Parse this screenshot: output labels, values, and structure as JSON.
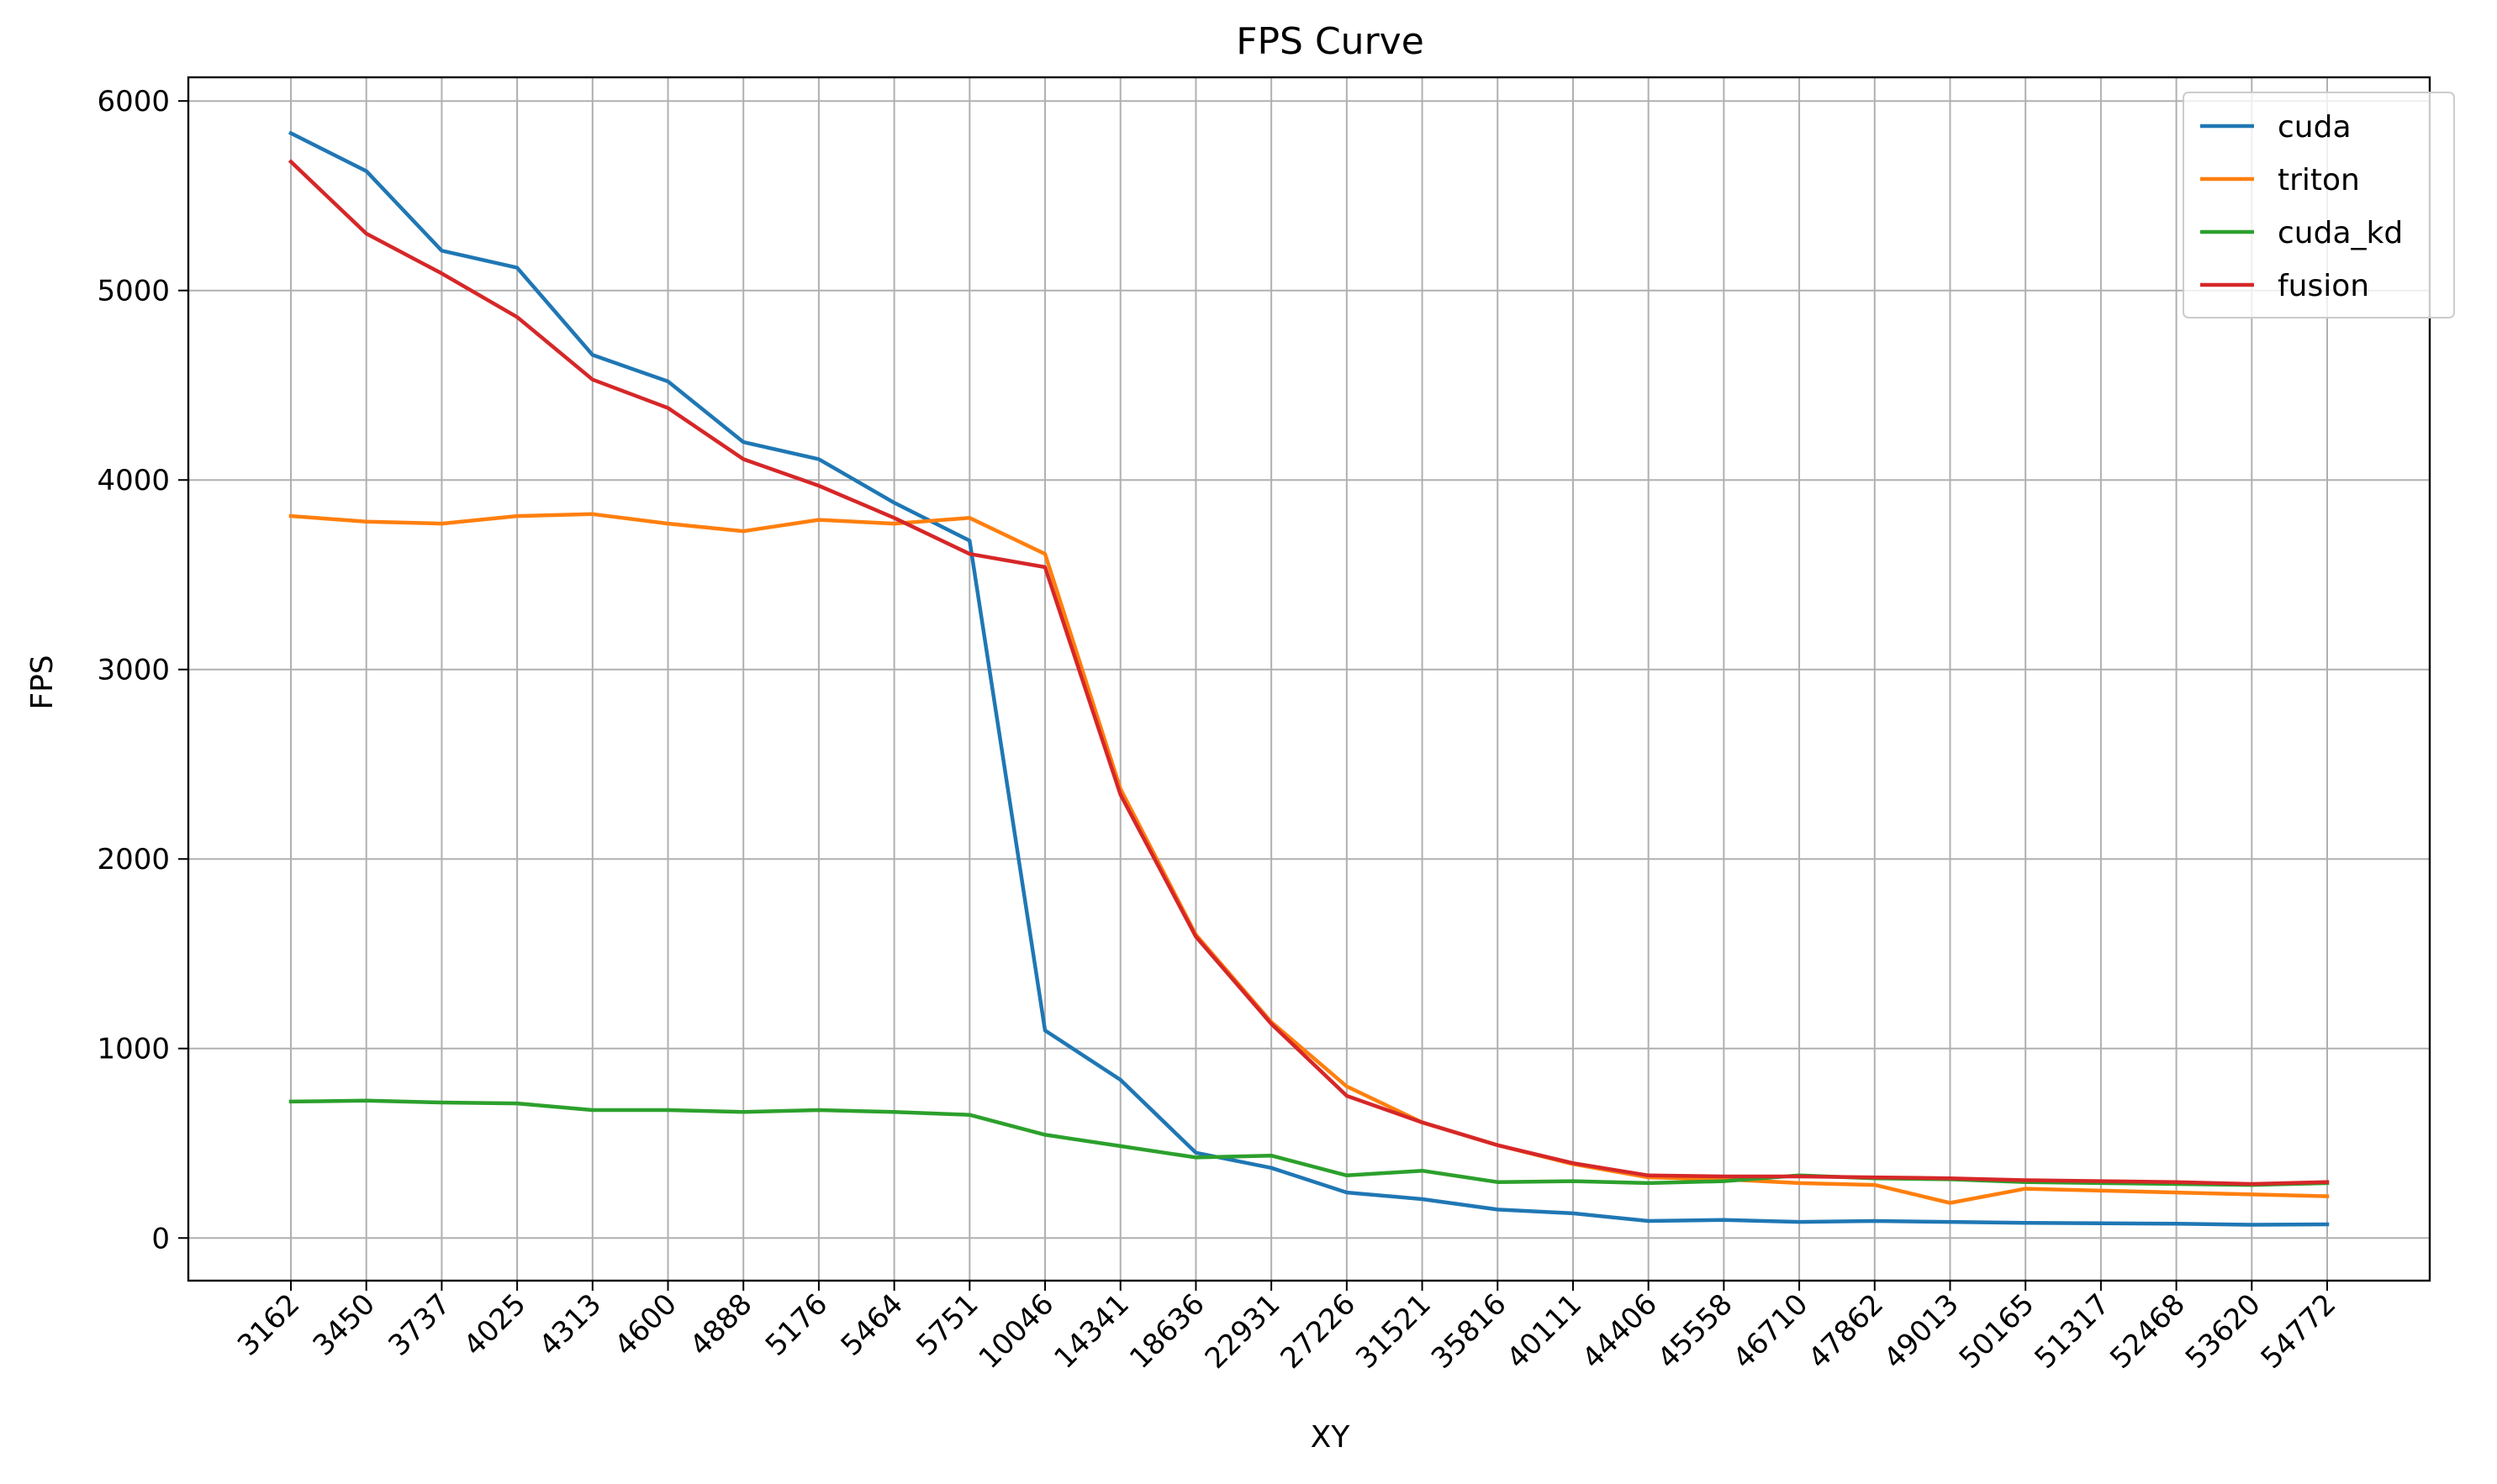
{
  "chart_data": {
    "type": "line",
    "title": "FPS Curve",
    "xlabel": "XY",
    "ylabel": "FPS",
    "categories": [
      "3162",
      "3450",
      "3737",
      "4025",
      "4313",
      "4600",
      "4888",
      "5176",
      "5464",
      "5751",
      "10046",
      "14341",
      "18636",
      "22931",
      "27226",
      "31521",
      "35816",
      "40111",
      "44406",
      "45558",
      "46710",
      "47862",
      "49013",
      "50165",
      "51317",
      "52468",
      "53620",
      "54772"
    ],
    "yticks": [
      0,
      1000,
      2000,
      3000,
      4000,
      5000,
      6000
    ],
    "ylim": [
      -225,
      6125
    ],
    "grid": true,
    "legend_position": "top-right",
    "series": [
      {
        "name": "cuda",
        "color": "#1f77b4",
        "values": [
          5830,
          5630,
          5210,
          5120,
          4660,
          4520,
          4200,
          4110,
          3880,
          3680,
          1095,
          835,
          450,
          370,
          240,
          205,
          150,
          130,
          90,
          95,
          85,
          90,
          85,
          80,
          78,
          75,
          70,
          72
        ]
      },
      {
        "name": "triton",
        "color": "#ff7f0e",
        "values": [
          3810,
          3780,
          3770,
          3810,
          3820,
          3770,
          3730,
          3790,
          3770,
          3800,
          3610,
          2370,
          1600,
          1140,
          800,
          610,
          490,
          390,
          320,
          310,
          290,
          280,
          185,
          260,
          250,
          240,
          230,
          220
        ]
      },
      {
        "name": "cuda_kd",
        "color": "#2ca02c",
        "values": [
          720,
          725,
          715,
          710,
          675,
          675,
          665,
          675,
          665,
          650,
          545,
          485,
          425,
          435,
          330,
          355,
          295,
          300,
          290,
          300,
          330,
          315,
          310,
          295,
          290,
          285,
          280,
          290
        ]
      },
      {
        "name": "fusion",
        "color": "#d62728",
        "values": [
          5680,
          5300,
          5090,
          4860,
          4530,
          4380,
          4110,
          3970,
          3800,
          3610,
          3540,
          2340,
          1590,
          1130,
          750,
          610,
          490,
          395,
          330,
          325,
          325,
          320,
          315,
          305,
          300,
          295,
          285,
          295
        ]
      }
    ]
  }
}
